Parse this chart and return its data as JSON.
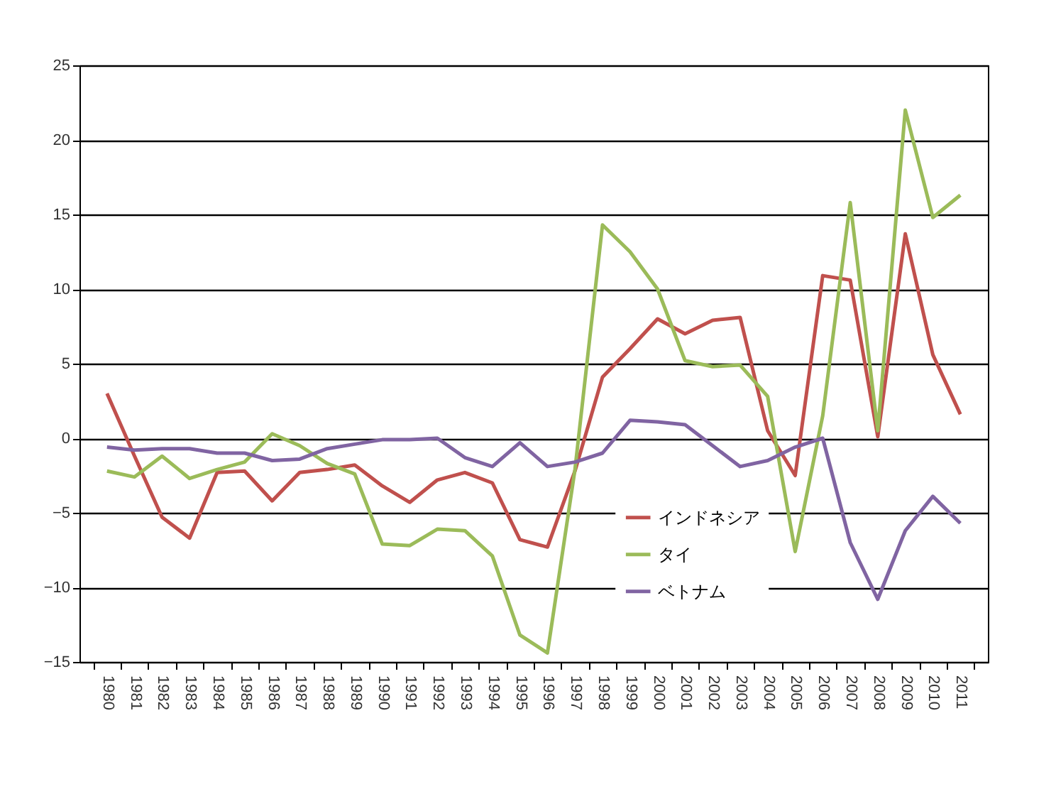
{
  "chart_data": {
    "type": "line",
    "categories": [
      "1980",
      "1981",
      "1982",
      "1983",
      "1984",
      "1985",
      "1986",
      "1987",
      "1988",
      "1989",
      "1990",
      "1991",
      "1992",
      "1993",
      "1994",
      "1995",
      "1996",
      "1997",
      "1998",
      "1999",
      "2000",
      "2001",
      "2002",
      "2003",
      "2004",
      "2005",
      "2006",
      "2007",
      "2008",
      "2009",
      "2010",
      "2011"
    ],
    "series": [
      {
        "name": "インドネシア",
        "color": "#c0504d",
        "values": [
          3.0,
          -1.2,
          -5.3,
          -6.7,
          -2.3,
          -2.2,
          -4.2,
          -2.3,
          -2.1,
          -1.8,
          -3.2,
          -4.3,
          -2.8,
          -2.3,
          -3.0,
          -6.8,
          -7.3,
          -2.2,
          4.1,
          6.0,
          8.0,
          7.0,
          7.9,
          8.1,
          0.5,
          -2.5,
          10.9,
          10.6,
          0.1,
          13.7,
          5.6,
          1.6
        ]
      },
      {
        "name": "タイ",
        "color": "#9bbb59",
        "values": [
          -2.2,
          -2.6,
          -1.2,
          -2.7,
          -2.1,
          -1.6,
          0.3,
          -0.5,
          -1.7,
          -2.4,
          -7.1,
          -7.2,
          -6.1,
          -6.2,
          -7.9,
          -13.2,
          -14.4,
          -2.1,
          14.3,
          12.5,
          10.0,
          5.2,
          4.8,
          4.9,
          2.8,
          -7.6,
          1.5,
          15.8,
          0.5,
          22.0,
          14.8,
          16.3
        ]
      },
      {
        "name": "ベトナム",
        "color": "#8064a2",
        "values": [
          -0.6,
          -0.8,
          -0.7,
          -0.7,
          -1.0,
          -1.0,
          -1.5,
          -1.4,
          -0.7,
          -0.4,
          -0.1,
          -0.1,
          0.0,
          -1.3,
          -1.9,
          -0.3,
          -1.9,
          -1.6,
          -1.0,
          1.2,
          1.1,
          0.9,
          -0.5,
          -1.9,
          -1.5,
          -0.6,
          0.0,
          -7.0,
          -10.8,
          -6.2,
          -3.9,
          -5.7
        ]
      }
    ],
    "ylim": [
      -15,
      25
    ],
    "yticks": [
      -15,
      -10,
      -5,
      0,
      5,
      10,
      15,
      20,
      25
    ],
    "grid": "y",
    "legend": "bottom",
    "marker": "none",
    "line_style": "solid"
  }
}
